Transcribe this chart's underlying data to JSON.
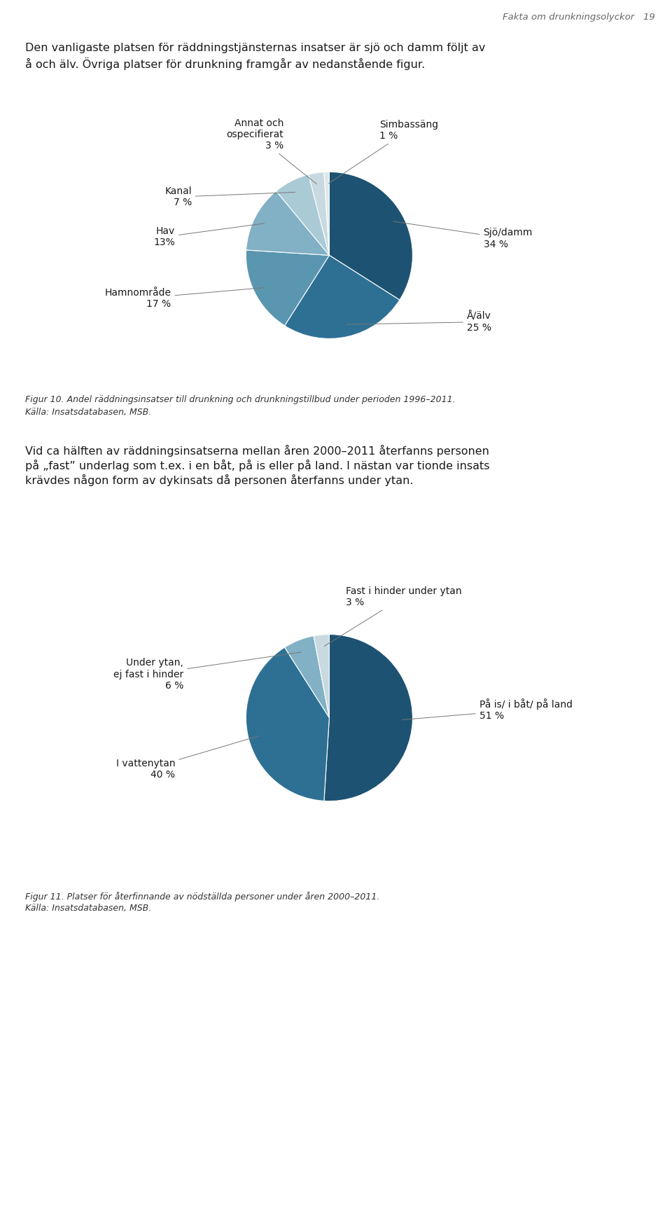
{
  "header_text": "Fakta om drunkningsolyckor   19",
  "intro_text1": "Den vanligaste platsen för räddningstjänsternas insatser är sjö och damm följt av",
  "intro_text2": "å och älv. Övriga platser för drunkning framgår av nedanstående figur.",
  "chart1": {
    "labels_plain": [
      "Sjö/damm",
      "Å/älv",
      "Hamnområde",
      "Hav",
      "Kanal",
      "Annat och\nospecifierat",
      "Simbassäng"
    ],
    "pct_labels": [
      "34 %",
      "25 %",
      "17 %",
      "13%",
      "7 %",
      "3 %",
      "1 %"
    ],
    "values": [
      34,
      25,
      17,
      13,
      7,
      3,
      1
    ],
    "colors": [
      "#1d5272",
      "#2e7094",
      "#5b96b0",
      "#82b0c4",
      "#aacbd6",
      "#c8dadf",
      "#dde8ec"
    ],
    "startangle": 90,
    "caption_line1": "Figur 10. Andel räddningsinsatser till drunkning och drunkningstillbud under perioden 1996–2011.",
    "caption_line2": "Källa: Insatsdatabasen, MSB."
  },
  "middle_text1": "Vid ca hälften av räddningsinsatserna mellan åren 2000–2011 återfanns personen",
  "middle_text2": "på „fast” underlag som t.ex. i en båt, på is eller på land. I nästan var tionde insats",
  "middle_text3": "krävdes någon form av dykinsats då personen återfanns under ytan.",
  "chart2": {
    "labels_plain": [
      "På is/ i båt/ på land",
      "I vattenytan",
      "Under ytan,\nej fast i hinder",
      "Fast i hinder under ytan"
    ],
    "pct_labels": [
      "51 %",
      "40 %",
      "6 %",
      "3 %"
    ],
    "values": [
      51,
      40,
      6,
      3
    ],
    "colors": [
      "#1d5272",
      "#2e7094",
      "#82b0c4",
      "#c8dadf"
    ],
    "startangle": 90,
    "caption_line1": "Figur 11. Platser för återfinnande av nödställda personer under åren 2000–2011.",
    "caption_line2": "Källa: Insatsdatabasen, MSB."
  },
  "bg_color": "#ffffff",
  "text_color": "#1a1a1a",
  "header_color": "#666666",
  "caption_color": "#333333",
  "label_fontsize": 10,
  "caption_fontsize": 9,
  "body_fontsize": 11.5
}
